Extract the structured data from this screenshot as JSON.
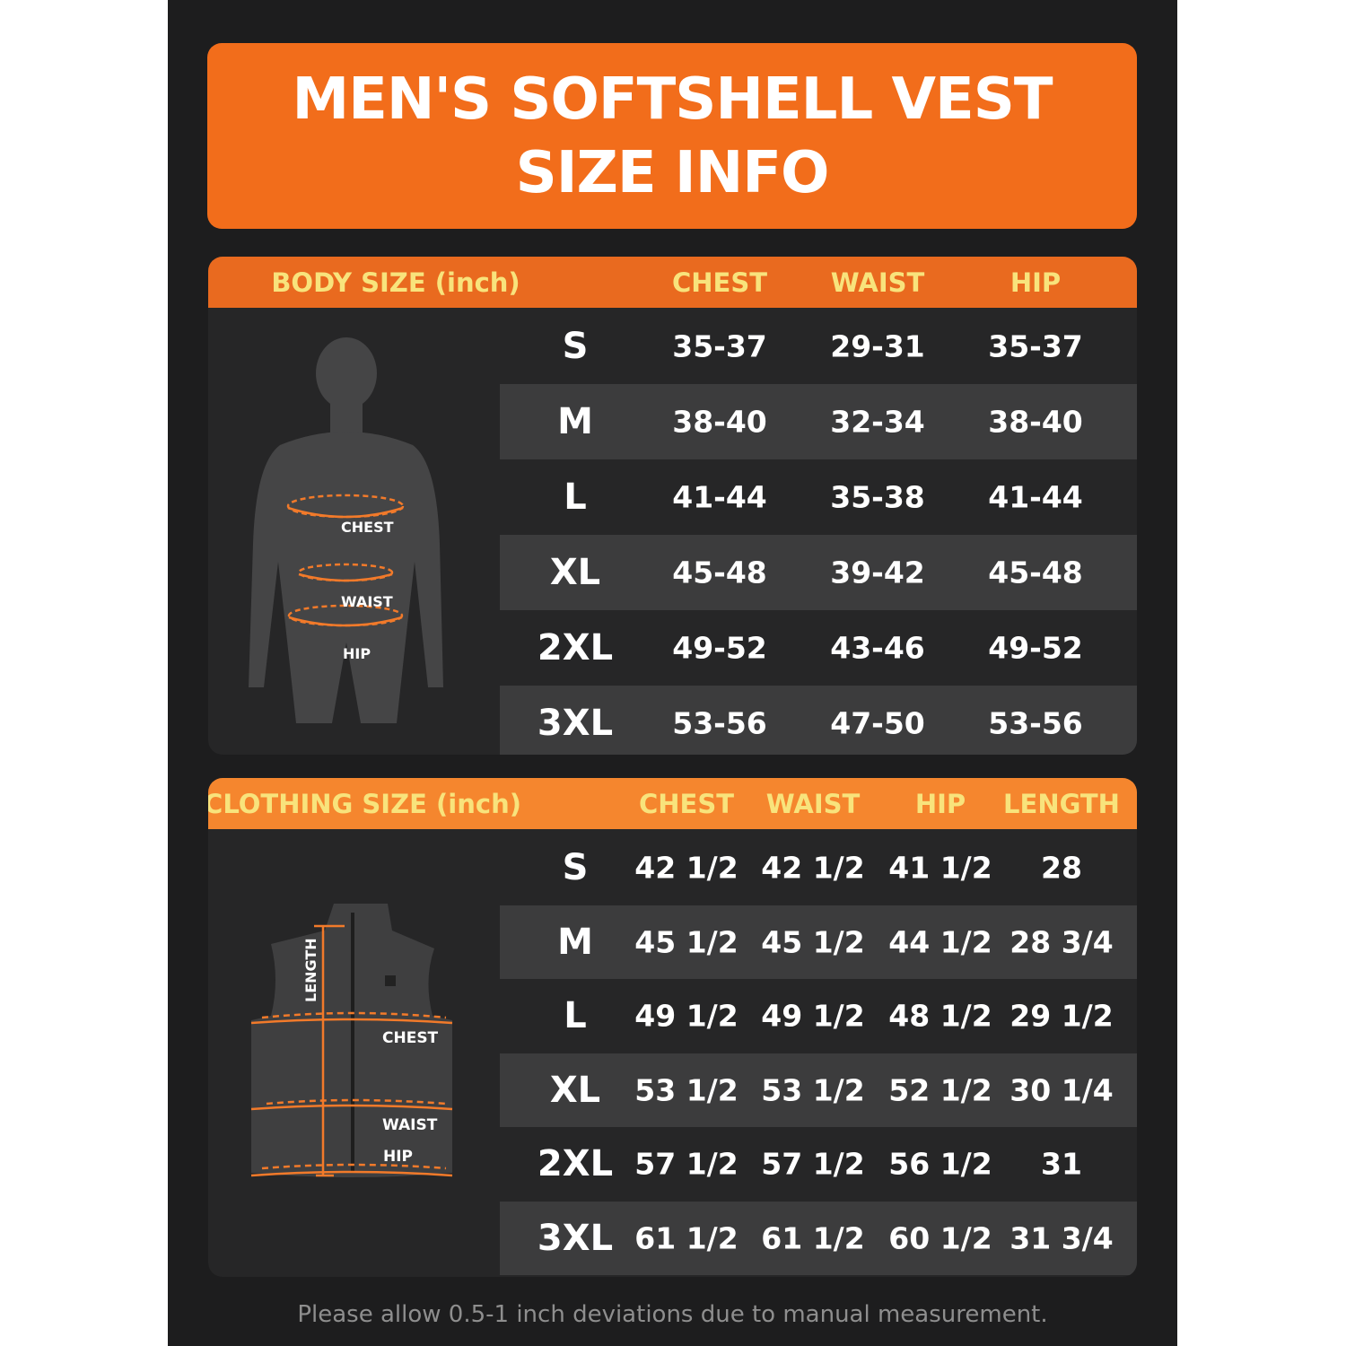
{
  "title": {
    "line1": "MEN'S SOFTSHELL VEST",
    "line2": "SIZE INFO"
  },
  "body_size": {
    "header": "BODY SIZE (inch)",
    "columns": [
      "CHEST",
      "WAIST",
      "HIP"
    ],
    "figure_labels": {
      "chest": "CHEST",
      "waist": "WAIST",
      "hip": "HIP"
    },
    "rows": [
      {
        "size": "S",
        "values": [
          "35-37",
          "29-31",
          "35-37"
        ]
      },
      {
        "size": "M",
        "values": [
          "38-40",
          "32-34",
          "38-40"
        ]
      },
      {
        "size": "L",
        "values": [
          "41-44",
          "35-38",
          "41-44"
        ]
      },
      {
        "size": "XL",
        "values": [
          "45-48",
          "39-42",
          "45-48"
        ]
      },
      {
        "size": "2XL",
        "values": [
          "49-52",
          "43-46",
          "49-52"
        ]
      },
      {
        "size": "3XL",
        "values": [
          "53-56",
          "47-50",
          "53-56"
        ]
      }
    ]
  },
  "clothing_size": {
    "header": "CLOTHING SIZE (inch)",
    "columns": [
      "CHEST",
      "WAIST",
      "HIP",
      "LENGTH"
    ],
    "figure_labels": {
      "length": "LENGTH",
      "chest": "CHEST",
      "waist": "WAIST",
      "hip": "HIP"
    },
    "rows": [
      {
        "size": "S",
        "values": [
          "42 1/2",
          "42 1/2",
          "41 1/2",
          "28"
        ]
      },
      {
        "size": "M",
        "values": [
          "45 1/2",
          "45 1/2",
          "44 1/2",
          "28 3/4"
        ]
      },
      {
        "size": "L",
        "values": [
          "49 1/2",
          "49 1/2",
          "48 1/2",
          "29 1/2"
        ]
      },
      {
        "size": "XL",
        "values": [
          "53 1/2",
          "53 1/2",
          "52 1/2",
          "30 1/4"
        ]
      },
      {
        "size": "2XL",
        "values": [
          "57 1/2",
          "57 1/2",
          "56 1/2",
          "31"
        ]
      },
      {
        "size": "3XL",
        "values": [
          "61 1/2",
          "61 1/2",
          "60 1/2",
          "31 3/4"
        ]
      }
    ]
  },
  "note": "Please allow 0.5-1 inch deviations due to manual measurement.",
  "colors": {
    "background": "#1d1d1e",
    "accent": "#f26d1b",
    "header_text": "#f8e37c",
    "stripe": "#3c3c3d"
  }
}
